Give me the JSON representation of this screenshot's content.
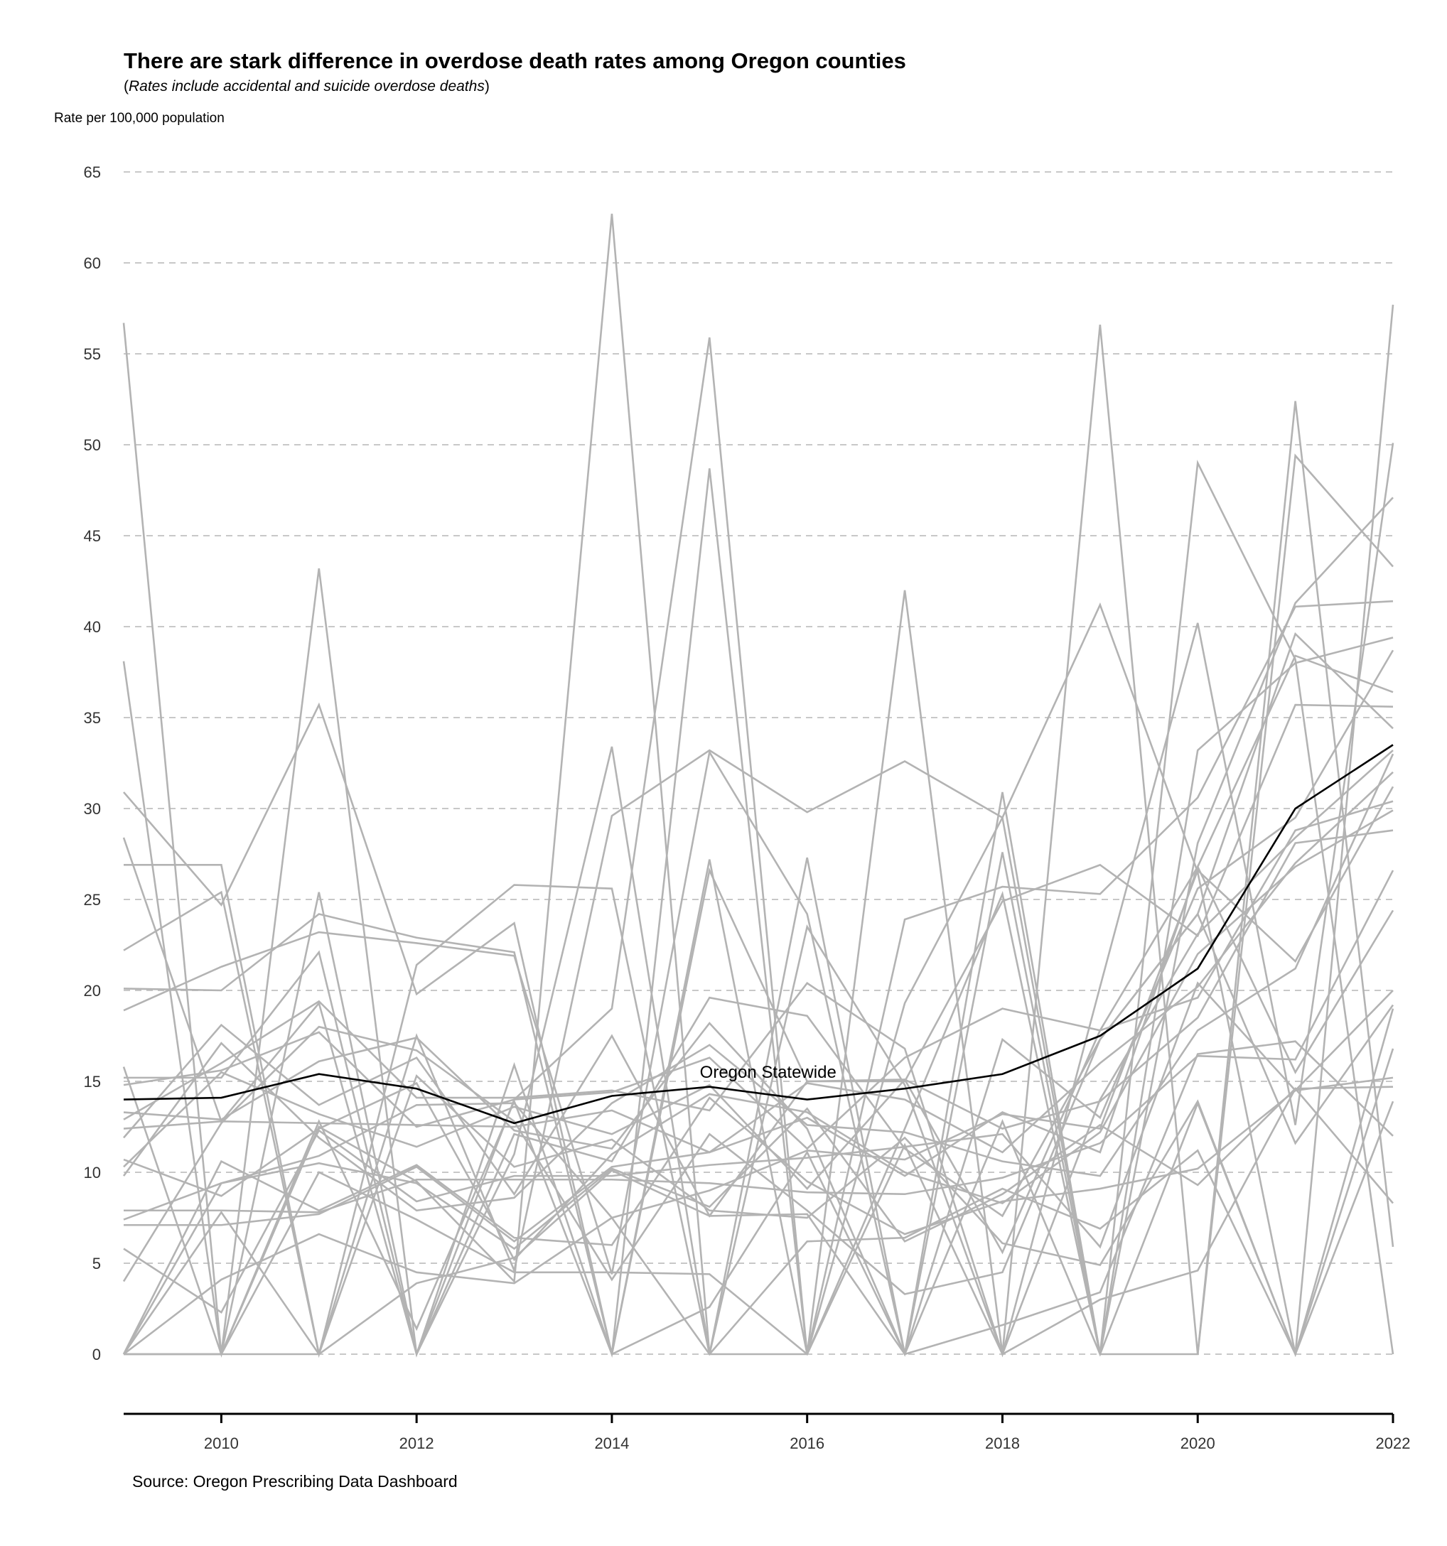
{
  "chart_data": {
    "type": "line",
    "title": "There are stark difference in overdose death rates among Oregon counties",
    "subtitle_prefix": "(",
    "subtitle_italic": "Rates include accidental and suicide overdose deaths",
    "subtitle_suffix": ")",
    "ylabel": "Rate per 100,000 population",
    "xlabel": "",
    "caption": "Source: Oregon Prescribing Data Dashboard",
    "annotation": {
      "text": "Oregon Statewide",
      "x": 2015.6,
      "y": 15.2
    },
    "xlim": [
      2009,
      2022
    ],
    "ylim": [
      0,
      65
    ],
    "x_ticks": [
      2010,
      2012,
      2014,
      2016,
      2018,
      2020,
      2022
    ],
    "y_ticks": [
      0,
      5,
      10,
      15,
      20,
      25,
      30,
      35,
      40,
      45,
      50,
      55,
      60,
      65
    ],
    "grid": "horizontal dashed",
    "x": [
      2009,
      2010,
      2011,
      2012,
      2013,
      2014,
      2015,
      2016,
      2017,
      2018,
      2019,
      2020,
      2021,
      2022
    ],
    "highlight": {
      "name": "Oregon Statewide",
      "color": "#000000",
      "values": [
        14.0,
        14.1,
        15.4,
        14.6,
        12.7,
        14.2,
        14.7,
        14.0,
        14.6,
        15.4,
        17.5,
        21.2,
        30.0,
        33.5
      ]
    },
    "county_color": "#b3b3b3",
    "counties": [
      {
        "values": [
          56.7,
          0,
          12.5,
          9.5,
          4.0,
          62.7,
          0,
          27.3,
          0,
          30.9,
          0,
          49.0,
          38.2,
          0
        ]
      },
      {
        "values": [
          38.1,
          0,
          43.2,
          0,
          14.0,
          19.0,
          55.9,
          0,
          42.0,
          0,
          56.6,
          0,
          52.4,
          5.9
        ]
      },
      {
        "values": [
          30.9,
          24.7,
          35.7,
          19.8,
          23.7,
          0,
          48.7,
          0,
          19.3,
          29.5,
          41.2,
          26.5,
          0,
          57.7
        ]
      },
      {
        "values": [
          28.4,
          12.8,
          19.3,
          0,
          11.0,
          33.4,
          0,
          23.5,
          14.8,
          0,
          20.2,
          40.2,
          12.6,
          50.1
        ]
      },
      {
        "values": [
          26.9,
          26.9,
          0,
          21.4,
          25.8,
          25.6,
          0,
          0,
          12.4,
          25.3,
          0,
          28.1,
          41.3,
          47.1
        ]
      },
      {
        "values": [
          22.2,
          25.4,
          0,
          17.5,
          4.6,
          29.6,
          33.2,
          29.8,
          32.6,
          29.5,
          0,
          0,
          49.4,
          43.3
        ]
      },
      {
        "values": [
          20.1,
          20.0,
          24.2,
          22.9,
          22.1,
          0,
          27.2,
          0,
          23.9,
          25.7,
          25.3,
          30.6,
          41.1,
          41.4
        ]
      },
      {
        "values": [
          18.9,
          21.3,
          23.2,
          22.6,
          21.9,
          4.4,
          33.1,
          24.2,
          0,
          27.6,
          0,
          33.2,
          38.0,
          39.4
        ]
      },
      {
        "values": [
          15.8,
          0,
          25.4,
          0,
          15.9,
          0,
          26.6,
          15.0,
          15.0,
          24.9,
          26.9,
          23.0,
          35.7,
          35.6
        ]
      },
      {
        "values": [
          15.2,
          15.2,
          22.1,
          0,
          12.1,
          10.6,
          19.6,
          18.6,
          11.3,
          7.6,
          17.3,
          24.2,
          39.6,
          34.4
        ]
      },
      {
        "values": [
          14.8,
          15.6,
          17.7,
          12.5,
          14.0,
          14.4,
          16.3,
          11.3,
          16.3,
          19.0,
          17.8,
          26.8,
          38.4,
          36.4
        ]
      },
      {
        "values": [
          13.3,
          12.9,
          16.1,
          17.4,
          12.3,
          11.3,
          18.2,
          12.4,
          0,
          17.3,
          13.0,
          25.6,
          29.5,
          38.7
        ]
      },
      {
        "values": [
          12.9,
          16.0,
          19.4,
          14.1,
          14.1,
          14.5,
          13.4,
          20.4,
          16.8,
          0,
          14.0,
          23.1,
          28.4,
          33.2
        ]
      },
      {
        "values": [
          12.4,
          12.8,
          12.7,
          12.6,
          12.5,
          13.4,
          11.1,
          14.9,
          14.0,
          11.1,
          16.0,
          20.2,
          27.0,
          32.0
        ]
      },
      {
        "values": [
          11.9,
          18.1,
          13.7,
          16.3,
          8.8,
          17.5,
          7.6,
          15.0,
          15.1,
          5.6,
          17.8,
          19.6,
          28.8,
          30.4
        ]
      },
      {
        "values": [
          10.7,
          8.7,
          12.4,
          14.9,
          5.2,
          11.0,
          14.3,
          13.3,
          10.0,
          8.3,
          12.2,
          22.0,
          26.8,
          29.9
        ]
      },
      {
        "values": [
          10.3,
          15.5,
          13.2,
          11.4,
          13.6,
          12.1,
          14.8,
          9.1,
          15.1,
          12.4,
          13.9,
          18.5,
          28.1,
          28.8
        ]
      },
      {
        "values": [
          9.8,
          17.1,
          11.9,
          7.9,
          8.6,
          13.8,
          17.0,
          12.6,
          12.2,
          10.6,
          9.8,
          17.8,
          21.2,
          33.0
        ]
      },
      {
        "values": [
          7.9,
          7.9,
          7.8,
          9.6,
          9.6,
          9.6,
          9.4,
          8.9,
          8.8,
          9.7,
          11.6,
          16.4,
          16.2,
          26.6
        ]
      },
      {
        "values": [
          7.4,
          9.4,
          10.9,
          13.7,
          13.8,
          7.5,
          9.0,
          11.2,
          10.7,
          13.2,
          12.4,
          26.6,
          21.6,
          31.2
        ]
      },
      {
        "values": [
          7.1,
          7.1,
          7.7,
          10.3,
          6.2,
          10.3,
          11.1,
          13.0,
          9.8,
          13.3,
          11.1,
          26.8,
          15.5,
          24.4
        ]
      },
      {
        "values": [
          5.8,
          2.3,
          12.3,
          8.4,
          9.8,
          9.8,
          10.4,
          10.8,
          11.4,
          12.1,
          5.9,
          20.4,
          14.5,
          20.0
        ]
      },
      {
        "values": [
          4.0,
          12.7,
          18.0,
          16.7,
          12.8,
          4.1,
          12.1,
          7.9,
          3.3,
          4.5,
          17.3,
          24.2,
          11.6,
          19.2
        ]
      },
      {
        "values": [
          0,
          10.6,
          7.9,
          10.4,
          6.4,
          6.0,
          14.1,
          9.5,
          6.6,
          8.4,
          9.1,
          10.2,
          14.5,
          15.2
        ]
      },
      {
        "values": [
          0,
          9.4,
          10.5,
          9.4,
          5.8,
          10.2,
          8.1,
          13.5,
          6.2,
          8.8,
          12.6,
          9.3,
          14.6,
          14.7
        ]
      },
      {
        "values": [
          0,
          7.8,
          0,
          15.3,
          10.3,
          11.8,
          7.9,
          7.5,
          11.9,
          6.1,
          4.9,
          13.9,
          0,
          13.9
        ]
      },
      {
        "values": [
          0,
          4.1,
          6.6,
          4.5,
          3.9,
          7.5,
          0,
          6.2,
          6.4,
          9.1,
          6.9,
          11.2,
          0,
          16.8
        ]
      },
      {
        "values": [
          0,
          0,
          12.8,
          1.4,
          13.9,
          0,
          2.6,
          11.1,
          0,
          1.6,
          3.4,
          16.5,
          17.2,
          12.0
        ]
      },
      {
        "values": [
          0,
          0,
          10.0,
          7.4,
          4.5,
          4.5,
          4.4,
          0,
          11.5,
          0,
          3.0,
          4.6,
          14.6,
          8.3
        ]
      },
      {
        "values": [
          0,
          0,
          0,
          3.9,
          5.3,
          10.1,
          7.6,
          7.7,
          0,
          12.8,
          0,
          13.8,
          0,
          19.0
        ]
      }
    ]
  }
}
